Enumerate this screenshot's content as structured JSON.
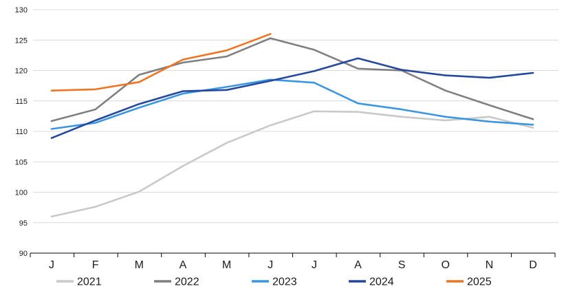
{
  "chart_data": {
    "type": "line",
    "title": "",
    "categories": [
      "J",
      "F",
      "M",
      "A",
      "M",
      "J",
      "J",
      "A",
      "S",
      "O",
      "N",
      "D"
    ],
    "series": [
      {
        "name": "2021",
        "color": "#c9c9c9",
        "values": [
          96.0,
          97.6,
          100.1,
          104.3,
          108.1,
          111.0,
          113.3,
          113.2,
          112.4,
          111.8,
          112.4,
          110.6
        ]
      },
      {
        "name": "2022",
        "color": "#7f7f7f",
        "values": [
          111.7,
          113.6,
          119.3,
          121.3,
          122.3,
          125.3,
          123.4,
          120.3,
          120.0,
          116.7,
          114.3,
          112.0
        ]
      },
      {
        "name": "2023",
        "color": "#3b96e2",
        "values": [
          110.4,
          111.4,
          113.9,
          116.2,
          117.3,
          118.5,
          118.0,
          114.6,
          113.6,
          112.4,
          111.6,
          111.1
        ]
      },
      {
        "name": "2024",
        "color": "#24489c",
        "values": [
          108.9,
          111.8,
          114.5,
          116.6,
          116.8,
          118.3,
          119.9,
          122.0,
          120.1,
          119.2,
          118.8,
          119.6
        ]
      },
      {
        "name": "2025",
        "color": "#ed7524",
        "values": [
          116.7,
          116.9,
          118.1,
          121.8,
          123.3,
          126.0
        ]
      }
    ],
    "ylim": [
      90,
      130
    ],
    "yticks": [
      90,
      95,
      100,
      105,
      110,
      115,
      120,
      125,
      130
    ],
    "xlabel": "",
    "ylabel": "",
    "grid": "horizontal",
    "legend_position": "bottom",
    "legend_labels": [
      "2021",
      "2022",
      "2023",
      "2024",
      "2025"
    ]
  },
  "colors": {
    "background": "#ffffff",
    "gridline": "#d9d9d9",
    "axis": "#000000",
    "tick_label": "#1a1a1a"
  }
}
